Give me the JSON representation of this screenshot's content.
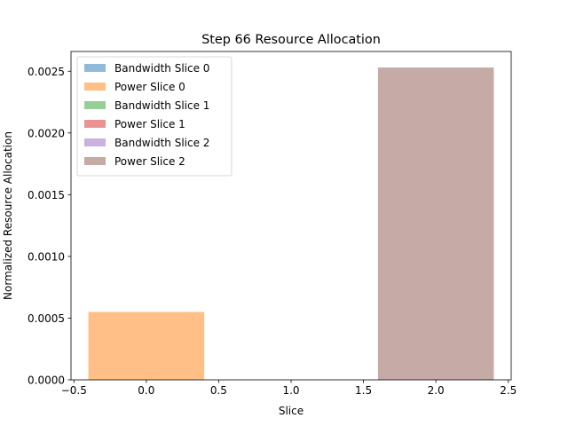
{
  "chart_data": {
    "type": "bar",
    "title": "Step 66 Resource Allocation",
    "xlabel": "Slice",
    "ylabel": "Normalized Resource Allocation",
    "xlim": [
      -0.52,
      2.52
    ],
    "ylim": [
      0,
      0.00266
    ],
    "x_ticks": [
      -0.5,
      0.0,
      0.5,
      1.0,
      1.5,
      2.0,
      2.5
    ],
    "x_tick_labels": [
      "−0.5",
      "0.0",
      "0.5",
      "1.0",
      "1.5",
      "2.0",
      "2.5"
    ],
    "y_ticks": [
      0,
      0.0005,
      0.001,
      0.0015,
      0.002,
      0.0025
    ],
    "y_tick_labels": [
      "0.0000",
      "0.0005",
      "0.0010",
      "0.0015",
      "0.0020",
      "0.0025"
    ],
    "grid": false,
    "legend_position": "top-left",
    "bar_width": 0.8,
    "series": [
      {
        "name": "Bandwidth Slice 0",
        "x": 0,
        "value": 0,
        "color": "#1f77b4"
      },
      {
        "name": "Power Slice 0",
        "x": 0,
        "value": 0.00055,
        "color": "#ff7f0e"
      },
      {
        "name": "Bandwidth Slice 1",
        "x": 1,
        "value": 0,
        "color": "#2ca02c"
      },
      {
        "name": "Power Slice 1",
        "x": 1,
        "value": 0,
        "color": "#d62728"
      },
      {
        "name": "Bandwidth Slice 2",
        "x": 2,
        "value": 0,
        "color": "#9467bd"
      },
      {
        "name": "Power Slice 2",
        "x": 2,
        "value": 0.00253,
        "color": "#8c564b"
      }
    ],
    "bar_opacity": 0.5
  }
}
